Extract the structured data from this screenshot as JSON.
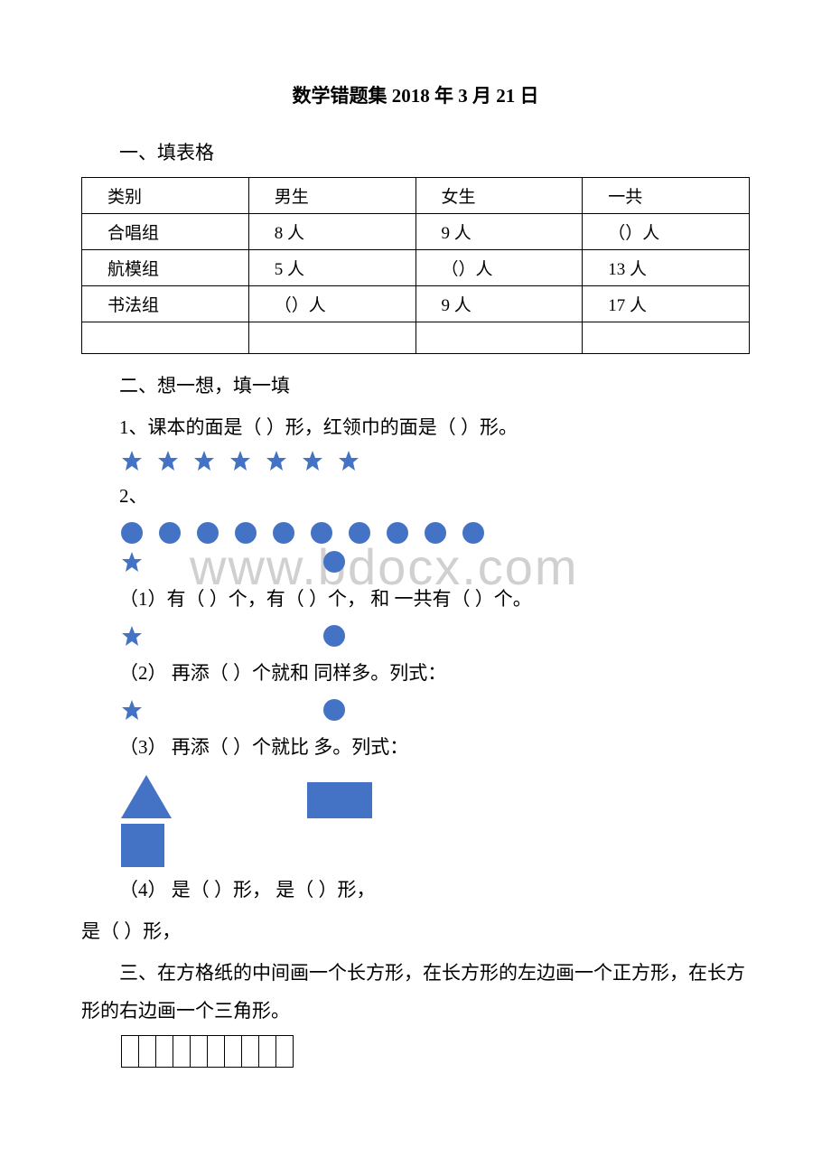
{
  "colors": {
    "shape_blue": "#4472c4",
    "text": "#000000",
    "background": "#ffffff",
    "watermark": "rgba(120,120,120,0.35)"
  },
  "title": "数学错题集 2018 年 3 月 21 日",
  "section1": {
    "heading": "一、填表格",
    "table": {
      "columns": [
        "类别",
        "男生",
        "女生",
        "一共"
      ],
      "rows": [
        [
          "合唱组",
          "8 人",
          "9 人",
          "（）人"
        ],
        [
          "航模组",
          "5 人",
          "（）人",
          "13 人"
        ],
        [
          "书法组",
          "（）人",
          "9 人",
          "17 人"
        ],
        [
          "",
          "",
          "",
          ""
        ]
      ]
    }
  },
  "section2": {
    "heading": "二、想一想，填一填",
    "q1": "1、课本的面是（ ）形，红领巾的面是（ ）形。",
    "stars_row_count": 7,
    "q2_label": "2、",
    "circles_row_count": 10,
    "q2_1": "（1）有（ ）个，有（ ）个， 和 一共有（ ）个。",
    "q2_2": "（2） 再添（  ）个就和 同样多。列式：",
    "q2_3": "（3） 再添（  ）个就比 多。列式：",
    "q2_4a": "（4） 是（  ）形， 是（  ）形，",
    "q2_4b": "是（  ）形，"
  },
  "section3": {
    "heading": "三、在方格纸的中间画一个长方形，在长方形的左边画一个正方形，在长方形的右边画一个三角形。",
    "grid_cols": 10,
    "grid_rows": 1
  },
  "watermark": "www.bdocx.com"
}
